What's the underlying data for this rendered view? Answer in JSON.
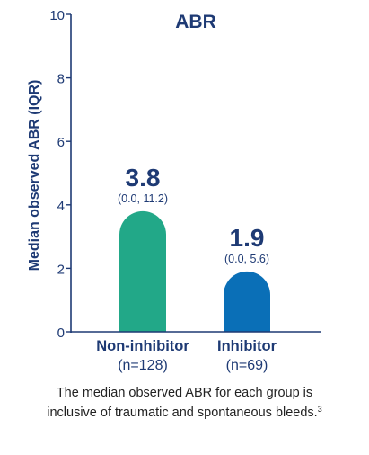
{
  "chart_data": {
    "type": "bar",
    "title": "ABR",
    "ylabel": "Median observed ABR (IQR)",
    "xlabel": "",
    "ylim": [
      0,
      10
    ],
    "yticks": [
      0,
      2,
      4,
      6,
      8,
      10
    ],
    "grid": false,
    "categories": [
      {
        "name": "Non-inhibitor",
        "n_label": "(n=128)"
      },
      {
        "name": "Inhibitor",
        "n_label": "(n=69)"
      }
    ],
    "values": [
      3.8,
      1.9
    ],
    "value_labels": [
      "3.8",
      "1.9"
    ],
    "iqr_labels": [
      "(0.0, 11.2)",
      "(0.0, 5.6)"
    ],
    "iqr": [
      [
        0.0,
        11.2
      ],
      [
        0.0,
        5.6
      ]
    ],
    "colors": {
      "bars": [
        "#22a888",
        "#0a6fb7"
      ],
      "text": "#1e3a74",
      "axis": "#1e3a74"
    }
  },
  "footnote": {
    "line1": "The median observed ABR for each group is",
    "line2": "inclusive of traumatic and spontaneous bleeds.",
    "ref": "3"
  }
}
